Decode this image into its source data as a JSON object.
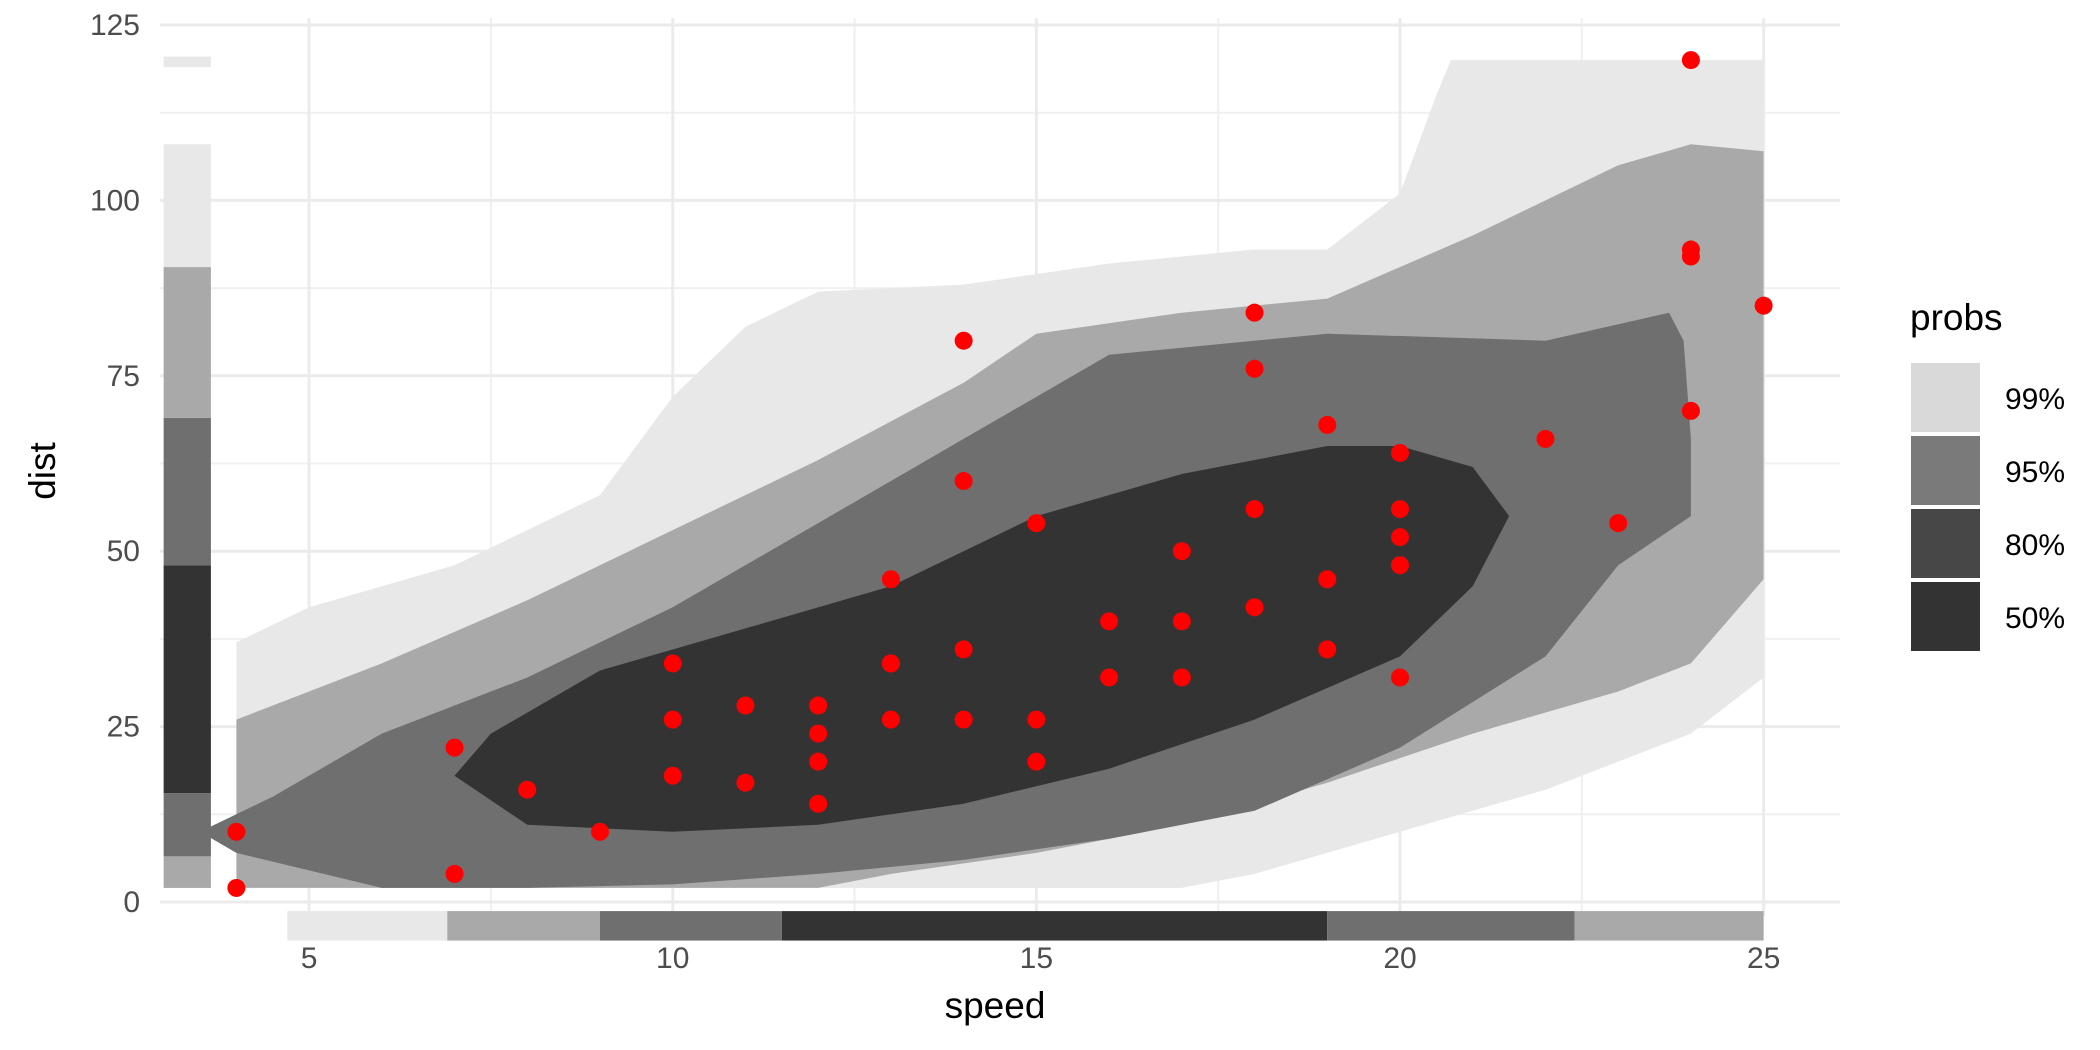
{
  "chart_data": {
    "type": "scatter",
    "title": "",
    "xlabel": "speed",
    "ylabel": "dist",
    "xlim": [
      2.95,
      26.05
    ],
    "ylim": [
      -2,
      126
    ],
    "x_ticks": [
      5,
      10,
      15,
      20,
      25
    ],
    "y_ticks": [
      0,
      25,
      50,
      75,
      100,
      125
    ],
    "grid": true,
    "point_color": "#ff0000",
    "points": [
      [
        4,
        2
      ],
      [
        4,
        10
      ],
      [
        7,
        4
      ],
      [
        7,
        22
      ],
      [
        8,
        16
      ],
      [
        9,
        10
      ],
      [
        10,
        18
      ],
      [
        10,
        26
      ],
      [
        10,
        34
      ],
      [
        11,
        17
      ],
      [
        11,
        28
      ],
      [
        12,
        14
      ],
      [
        12,
        20
      ],
      [
        12,
        24
      ],
      [
        12,
        28
      ],
      [
        13,
        26
      ],
      [
        13,
        34
      ],
      [
        13,
        34
      ],
      [
        13,
        46
      ],
      [
        14,
        26
      ],
      [
        14,
        36
      ],
      [
        14,
        60
      ],
      [
        14,
        80
      ],
      [
        15,
        20
      ],
      [
        15,
        26
      ],
      [
        15,
        54
      ],
      [
        16,
        32
      ],
      [
        16,
        40
      ],
      [
        17,
        32
      ],
      [
        17,
        40
      ],
      [
        17,
        50
      ],
      [
        18,
        42
      ],
      [
        18,
        56
      ],
      [
        18,
        76
      ],
      [
        18,
        84
      ],
      [
        19,
        36
      ],
      [
        19,
        46
      ],
      [
        19,
        68
      ],
      [
        20,
        32
      ],
      [
        20,
        48
      ],
      [
        20,
        52
      ],
      [
        20,
        56
      ],
      [
        20,
        64
      ],
      [
        22,
        66
      ],
      [
        23,
        54
      ],
      [
        24,
        70
      ],
      [
        24,
        92
      ],
      [
        24,
        93
      ],
      [
        24,
        120
      ],
      [
        25,
        85
      ]
    ],
    "density_regions": [
      {
        "prob": "99%",
        "color": "#e8e8e8",
        "outline": [
          [
            4,
            37
          ],
          [
            5,
            42
          ],
          [
            7,
            48
          ],
          [
            9,
            58
          ],
          [
            10,
            72
          ],
          [
            11,
            82
          ],
          [
            12,
            87
          ],
          [
            14,
            88
          ],
          [
            16,
            91
          ],
          [
            18,
            93
          ],
          [
            19,
            93
          ],
          [
            20,
            101
          ],
          [
            20.5,
            115
          ],
          [
            20.7,
            120
          ],
          [
            25,
            120
          ],
          [
            25,
            32
          ],
          [
            24,
            24
          ],
          [
            22,
            16
          ],
          [
            20,
            10
          ],
          [
            18,
            4
          ],
          [
            17,
            2
          ],
          [
            4,
            2
          ]
        ]
      },
      {
        "prob": "95%",
        "color": "#a9a9a9",
        "outline": [
          [
            4,
            26
          ],
          [
            6,
            34
          ],
          [
            8,
            43
          ],
          [
            10,
            53
          ],
          [
            12,
            63
          ],
          [
            14,
            74
          ],
          [
            15,
            81
          ],
          [
            17,
            84
          ],
          [
            19,
            86
          ],
          [
            21,
            95
          ],
          [
            23,
            105
          ],
          [
            24,
            108
          ],
          [
            25,
            107
          ],
          [
            25,
            46
          ],
          [
            24,
            34
          ],
          [
            23,
            30
          ],
          [
            21,
            24
          ],
          [
            19,
            17
          ],
          [
            17,
            11
          ],
          [
            15,
            7
          ],
          [
            13,
            4
          ],
          [
            12,
            2
          ],
          [
            4,
            2
          ]
        ]
      },
      {
        "prob": "80%",
        "color": "#6f6f6f",
        "outline": [
          [
            3.5,
            10
          ],
          [
            4,
            7
          ],
          [
            6,
            2
          ],
          [
            8,
            2
          ],
          [
            10,
            2.5
          ],
          [
            12,
            4
          ],
          [
            14,
            6
          ],
          [
            16,
            9
          ],
          [
            18,
            13
          ],
          [
            20,
            22
          ],
          [
            22,
            35
          ],
          [
            23,
            48
          ],
          [
            24,
            55
          ],
          [
            24,
            66
          ],
          [
            23.9,
            80
          ],
          [
            23.7,
            84
          ],
          [
            22,
            80
          ],
          [
            19,
            81
          ],
          [
            16,
            78
          ],
          [
            14,
            66
          ],
          [
            12,
            54
          ],
          [
            10,
            42
          ],
          [
            8,
            32
          ],
          [
            6,
            24
          ],
          [
            4.5,
            15
          ]
        ]
      },
      {
        "prob": "50%",
        "color": "#333333",
        "outline": [
          [
            7,
            18
          ],
          [
            8,
            11
          ],
          [
            10,
            10
          ],
          [
            12,
            11
          ],
          [
            14,
            14
          ],
          [
            16,
            19
          ],
          [
            18,
            26
          ],
          [
            20,
            35
          ],
          [
            21,
            45
          ],
          [
            21.5,
            55
          ],
          [
            21,
            62
          ],
          [
            20,
            65
          ],
          [
            19,
            65
          ],
          [
            17,
            61
          ],
          [
            15,
            55
          ],
          [
            13,
            45
          ],
          [
            11,
            39
          ],
          [
            9,
            33
          ],
          [
            7.5,
            24
          ]
        ]
      }
    ],
    "marginal_x": [
      {
        "from": 4.7,
        "to": 6.9,
        "color": "#e8e8e8"
      },
      {
        "from": 6.9,
        "to": 9.0,
        "color": "#a9a9a9"
      },
      {
        "from": 9.0,
        "to": 11.5,
        "color": "#6f6f6f"
      },
      {
        "from": 11.5,
        "to": 19.0,
        "color": "#333333"
      },
      {
        "from": 19.0,
        "to": 22.4,
        "color": "#6f6f6f"
      },
      {
        "from": 22.4,
        "to": 25.0,
        "color": "#a9a9a9"
      }
    ],
    "marginal_y": [
      {
        "from": 2,
        "to": 6.5,
        "color": "#a9a9a9"
      },
      {
        "from": 6.5,
        "to": 15.5,
        "color": "#6f6f6f"
      },
      {
        "from": 15.5,
        "to": 48,
        "color": "#333333"
      },
      {
        "from": 48,
        "to": 69,
        "color": "#6f6f6f"
      },
      {
        "from": 69,
        "to": 90.5,
        "color": "#a9a9a9"
      },
      {
        "from": 90.5,
        "to": 108,
        "color": "#e8e8e8"
      },
      {
        "from": 119,
        "to": 120.5,
        "color": "#e8e8e8"
      }
    ],
    "legend": {
      "title": "probs",
      "position": "right",
      "entries": [
        {
          "label": "99%",
          "color": "#d9d9d9"
        },
        {
          "label": "95%",
          "color": "#7a7a7a"
        },
        {
          "label": "80%",
          "color": "#474747"
        },
        {
          "label": "50%",
          "color": "#333333"
        }
      ]
    }
  }
}
